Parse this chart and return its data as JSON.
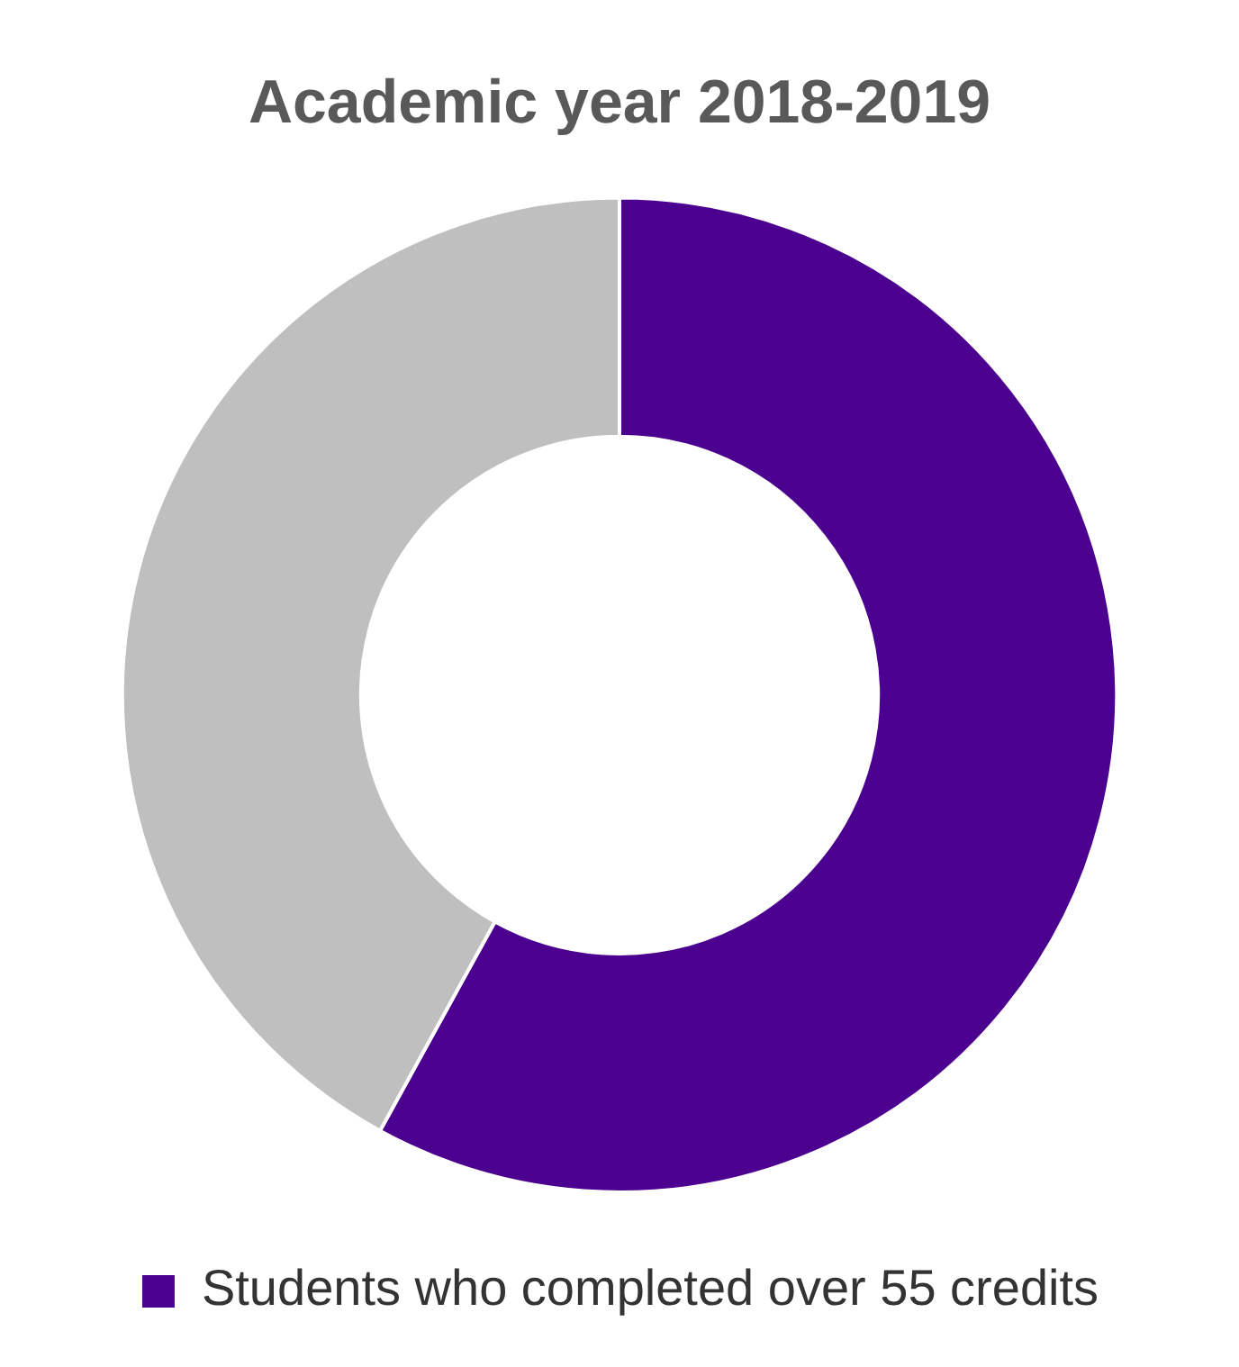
{
  "chart_data": {
    "type": "donut",
    "title": "Academic year 2018-2019",
    "categories": [
      "Students who completed over 55 credits",
      null
    ],
    "values": [
      58,
      42
    ],
    "colors": [
      "#4b0090",
      "#bfbfbf"
    ],
    "legend": "bottom"
  }
}
